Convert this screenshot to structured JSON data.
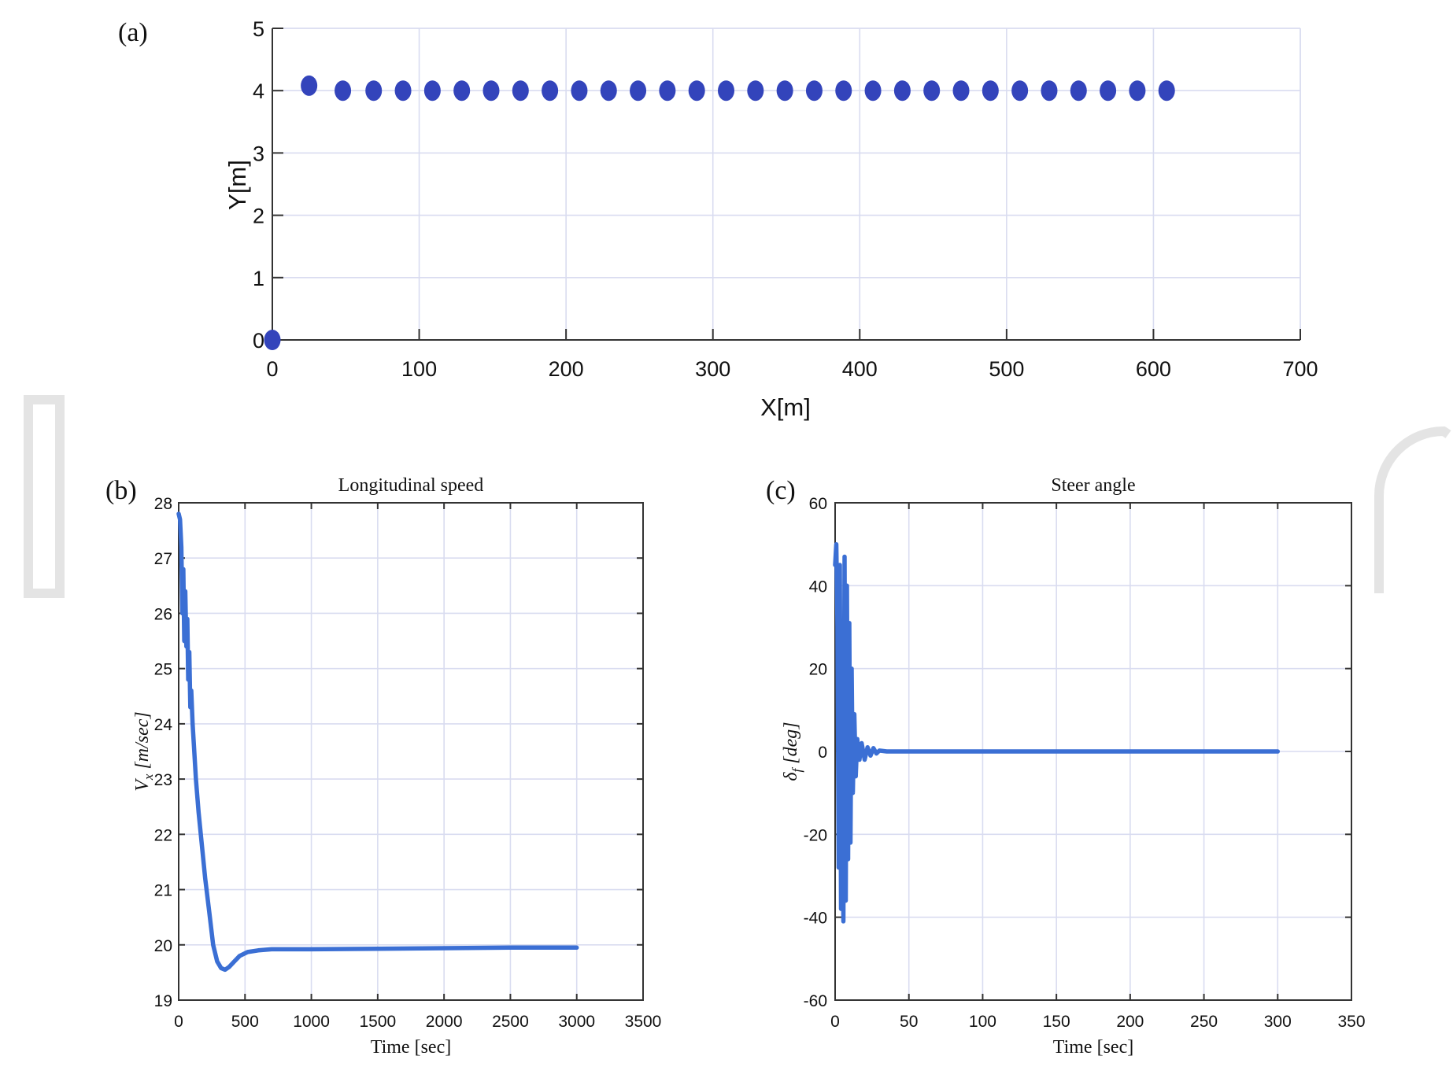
{
  "chart_data": [
    {
      "panel": "(a)",
      "type": "scatter",
      "title": "",
      "xlabel": "X[m]",
      "ylabel": "Y[m]",
      "xlim": [
        0,
        700
      ],
      "ylim": [
        0,
        5
      ],
      "xticks": [
        0,
        100,
        200,
        300,
        400,
        500,
        600,
        700
      ],
      "yticks": [
        0,
        1,
        2,
        3,
        4,
        5
      ],
      "grid": true,
      "colors": {
        "marker": "#3344bb"
      },
      "series": [
        {
          "x": [
            0,
            25,
            48,
            69,
            89,
            109,
            129,
            149,
            169,
            189,
            209,
            229,
            249,
            269,
            289,
            309,
            329,
            349,
            369,
            389,
            409,
            429,
            449,
            469,
            489,
            509,
            529,
            549,
            569,
            589,
            609
          ],
          "y": [
            0,
            4.08,
            4,
            4,
            4,
            4,
            4,
            4,
            4,
            4,
            4,
            4,
            4,
            4,
            4,
            4,
            4,
            4,
            4,
            4,
            4,
            4,
            4,
            4,
            4,
            4,
            4,
            4,
            4,
            4,
            4
          ]
        }
      ]
    },
    {
      "panel": "(b)",
      "type": "line",
      "title": "Longitudinal speed",
      "xlabel": "Time [sec]",
      "ylabel": "V",
      "ylabel_sub": "x",
      "ylabel_unit": " [m/sec]",
      "xlim": [
        0,
        3500
      ],
      "ylim": [
        19,
        28
      ],
      "xticks": [
        0,
        500,
        1000,
        1500,
        2000,
        2500,
        3000,
        3500
      ],
      "yticks": [
        19,
        20,
        21,
        22,
        23,
        24,
        25,
        26,
        27,
        28
      ],
      "grid": true,
      "colors": {
        "line": "#3b6fd4"
      },
      "series": [
        {
          "x": [
            0,
            10,
            20,
            28,
            35,
            42,
            50,
            58,
            65,
            72,
            80,
            88,
            95,
            105,
            115,
            130,
            150,
            175,
            200,
            230,
            260,
            290,
            320,
            350,
            380,
            420,
            460,
            520,
            600,
            700,
            800,
            1000,
            1500,
            2000,
            2500,
            3000
          ],
          "y": [
            27.8,
            27.7,
            27.2,
            26.0,
            26.8,
            25.5,
            26.4,
            25.4,
            25.9,
            24.8,
            25.3,
            24.3,
            24.6,
            24.0,
            23.6,
            23.0,
            22.4,
            21.8,
            21.2,
            20.6,
            20.0,
            19.7,
            19.58,
            19.55,
            19.6,
            19.7,
            19.8,
            19.87,
            19.9,
            19.92,
            19.92,
            19.92,
            19.93,
            19.94,
            19.95,
            19.95
          ]
        }
      ]
    },
    {
      "panel": "(c)",
      "type": "line",
      "title": "Steer angle",
      "xlabel": "Time [sec]",
      "ylabel": "δ",
      "ylabel_sub": "f",
      "ylabel_unit": " [deg]",
      "xlim": [
        0,
        350
      ],
      "ylim": [
        -60,
        60
      ],
      "xticks": [
        0,
        50,
        100,
        150,
        200,
        250,
        300,
        350
      ],
      "yticks": [
        -60,
        -40,
        -20,
        0,
        20,
        40,
        60
      ],
      "grid": true,
      "colors": {
        "line": "#3b6fd4"
      },
      "series": [
        {
          "x": [
            0,
            0.8,
            1.6,
            2.4,
            3.2,
            4.0,
            4.8,
            5.6,
            6.4,
            7.2,
            8.0,
            8.8,
            9.6,
            10.4,
            11.2,
            12.0,
            13.0,
            14.0,
            15.0,
            16.5,
            18.0,
            20.0,
            22.0,
            24.0,
            26.0,
            28.0,
            30.0,
            35.0,
            50.0,
            100.0,
            200.0,
            300.0
          ],
          "y": [
            45,
            50,
            30,
            -28,
            45,
            -38,
            20,
            -41,
            47,
            -36,
            40,
            -26,
            31,
            -22,
            20,
            -10,
            9,
            -6,
            3,
            -2,
            2,
            -2,
            1,
            -1,
            0.8,
            -0.5,
            0.2,
            0,
            0,
            0,
            0,
            0
          ]
        }
      ]
    }
  ]
}
